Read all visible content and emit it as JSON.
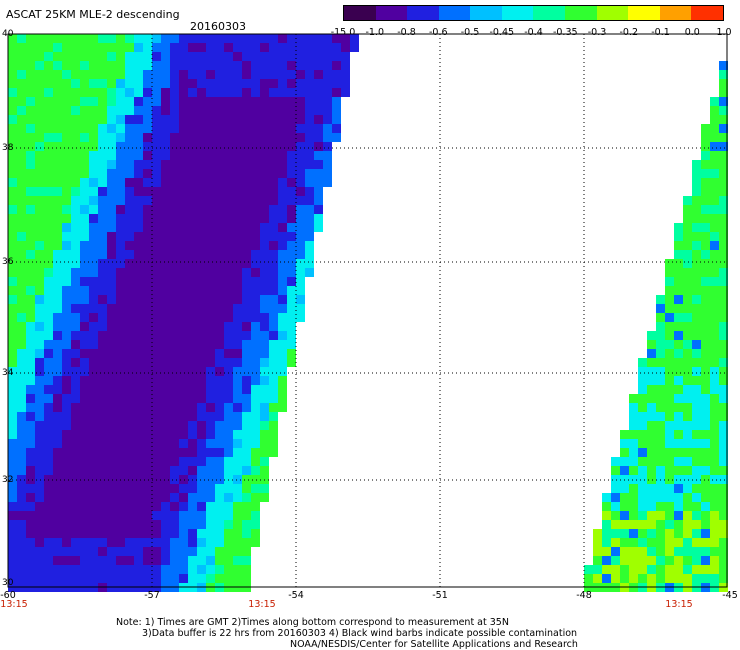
{
  "header": {
    "title": "ASCAT 25KM MLE-2 descending",
    "date": "20160303"
  },
  "colorbar": {
    "labels": [
      "-15.0",
      "-1.0",
      "-0.8",
      "-0.6",
      "-0.5",
      "-0.45",
      "-0.4",
      "-0.35",
      "-0.3",
      "-0.2",
      "-0.1",
      "0.0",
      "1.0"
    ],
    "colors": [
      "#3a0050",
      "#5000a0",
      "#2020e0",
      "#0070ff",
      "#00c0ff",
      "#00f0f0",
      "#00ffa0",
      "#30ff30",
      "#a0ff00",
      "#ffff00",
      "#ffa000",
      "#ff3000"
    ]
  },
  "map": {
    "lon_labels": [
      "-60",
      "-57",
      "-54",
      "-51",
      "-48",
      "-45"
    ],
    "lat_labels": [
      "40",
      "38",
      "36",
      "34",
      "32",
      "30"
    ],
    "times": [
      "13:15",
      "13:15",
      "13:15"
    ],
    "no_data_color": "#ffffff",
    "grid": "dotted"
  },
  "notes": {
    "line1": "Note: 1) Times are GMT 2)Times along bottom correspond to measurement at 35N",
    "line2": "3)Data buffer is 22 hrs from 20160303 4) Black wind barbs indicate possible contamination",
    "line3": "NOAA/NESDIS/Center for Satellite Applications and Research"
  }
}
